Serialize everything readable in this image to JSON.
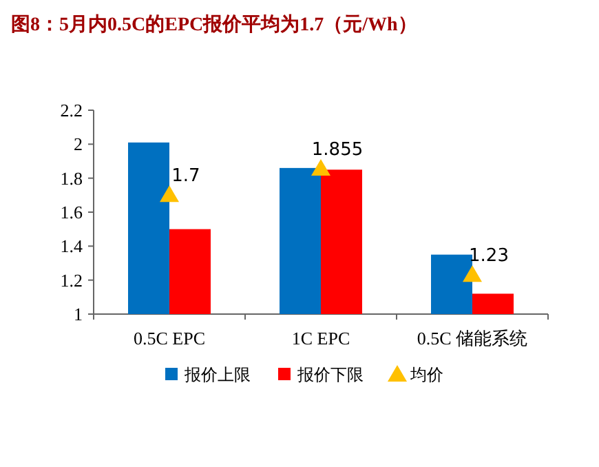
{
  "chart_data": {
    "type": "bar",
    "title": "图8：5月内0.5C的EPC报价平均为1.7（元/Wh）",
    "categories": [
      "0.5C EPC",
      "1C EPC",
      "0.5C 储能系统"
    ],
    "series": [
      {
        "name": "报价上限",
        "color": "#0070c0",
        "values": [
          2.01,
          1.86,
          1.35
        ]
      },
      {
        "name": "报价下限",
        "color": "#ff0000",
        "values": [
          1.5,
          1.85,
          1.12
        ]
      },
      {
        "name": "均价",
        "type": "scatter",
        "marker": "triangle",
        "color": "#ffc000",
        "values": [
          1.7,
          1.855,
          1.23
        ],
        "value_labels": [
          "1.7",
          "1.855",
          "1.23"
        ]
      }
    ],
    "ylim": [
      1,
      2.2
    ],
    "yticks": [
      1,
      1.2,
      1.4,
      1.6,
      1.8,
      2,
      2.2
    ],
    "grid": false,
    "legend": "bottom"
  }
}
